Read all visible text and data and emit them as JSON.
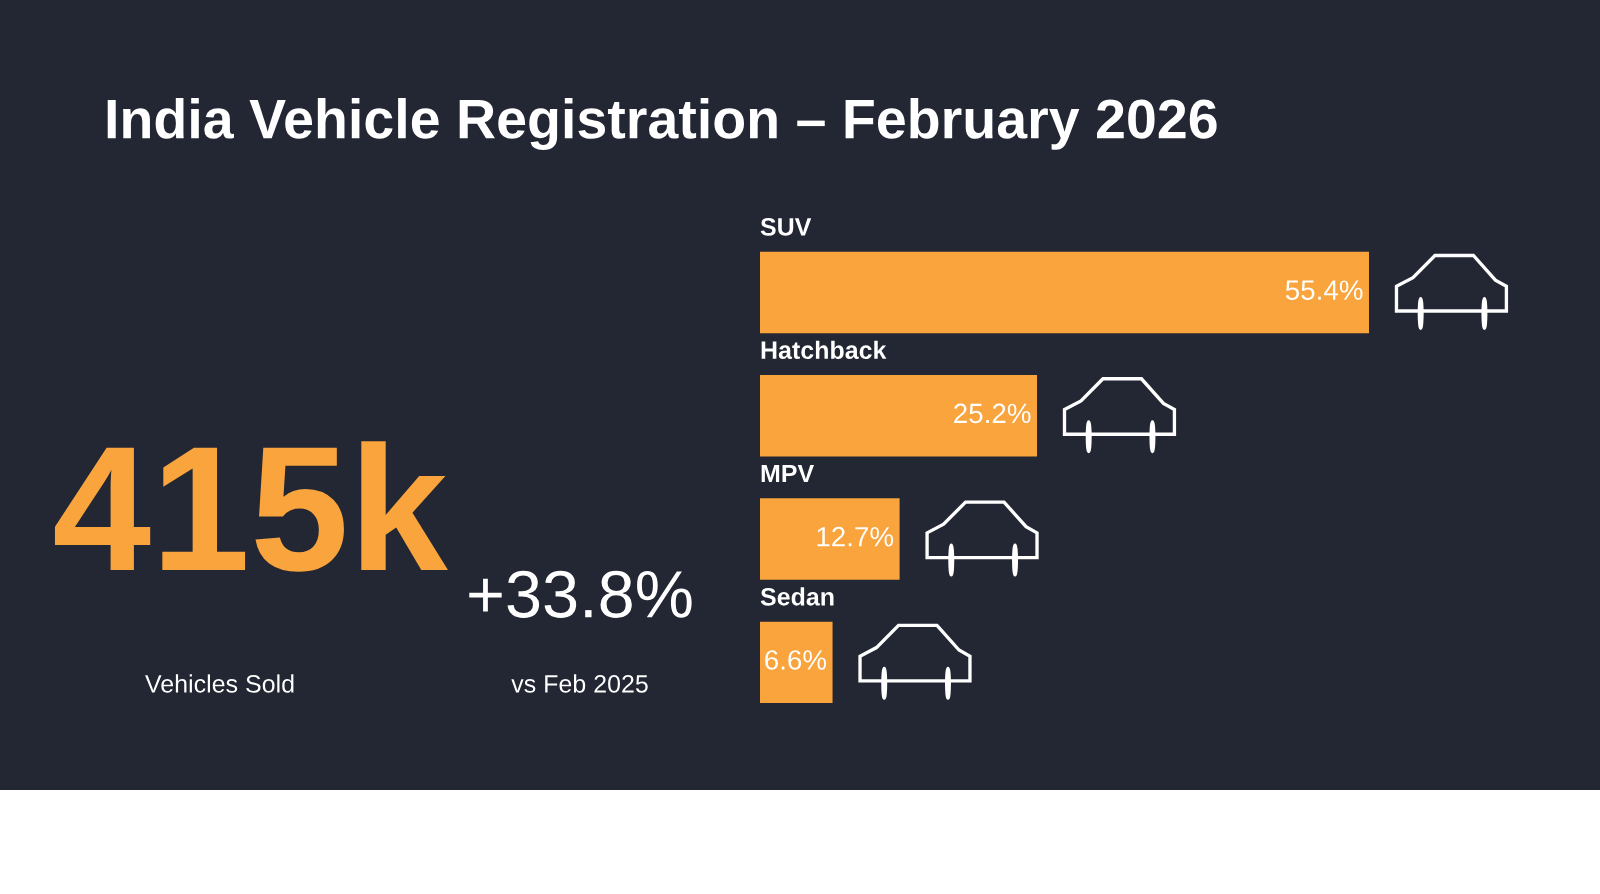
{
  "chart_data": [
    {
      "type": "other",
      "title": "India Vehicle Registration – February 2026",
      "annotations": [
        "415k",
        "Vehicles Sold",
        "+33.8%",
        "vs Feb 2025"
      ]
    },
    {
      "type": "bar",
      "orientation": "horizontal",
      "categories": [
        "SUV",
        "Hatchback",
        "MPV",
        "Sedan"
      ],
      "values": [
        55.4,
        25.2,
        12.7,
        6.6
      ],
      "color": "#f9a43c",
      "value_labels": [
        "55.4%",
        "25.2%",
        "12.7%",
        "6.6%"
      ]
    }
  ]
}
